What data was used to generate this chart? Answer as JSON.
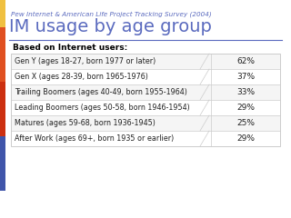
{
  "subtitle": "Pew Internet & American Life Project Tracking Survey (2004)",
  "title": "IM usage by age group",
  "table_header": "Based on Internet users:",
  "rows": [
    {
      "label": "Gen Y (ages 18-27, born 1977 or later)",
      "value": "62%"
    },
    {
      "label": "Gen X (ages 28-39, born 1965-1976)",
      "value": "37%"
    },
    {
      "label": "Trailing Boomers (ages 40-49, born 1955-1964)",
      "value": "33%"
    },
    {
      "label": "Leading Boomers (ages 50-58, born 1946-1954)",
      "value": "29%"
    },
    {
      "label": "Matures (ages 59-68, born 1936-1945)",
      "value": "25%"
    },
    {
      "label": "After Work (ages 69+, born 1935 or earlier)",
      "value": "29%"
    }
  ],
  "bg_color": "#ffffff",
  "title_color": "#5b6bbf",
  "subtitle_color": "#5b6bbf",
  "table_bg": "#e8e8e8",
  "row_bg_even": "#f5f5f5",
  "row_bg_odd": "#ffffff",
  "border_color": "#cccccc",
  "text_color": "#222222",
  "header_text_color": "#000000",
  "left_accent_colors": [
    "#f5a623",
    "#e74c3c",
    "#e74c3c",
    "#5b6bbf"
  ],
  "left_bar_color": "#f5a623"
}
